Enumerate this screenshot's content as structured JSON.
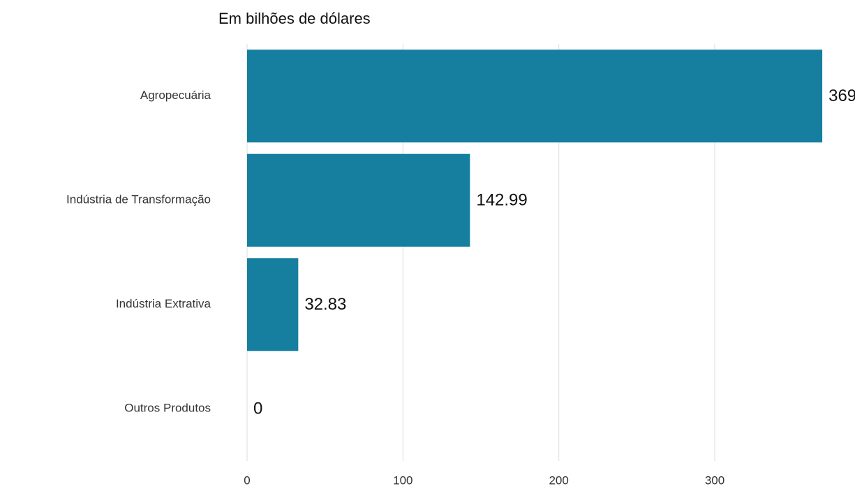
{
  "chart_data": {
    "type": "barh",
    "subtitle": "Em bilhões de dólares",
    "categories": [
      "Agropecuária",
      "Indústria de Transformação",
      "Indústria Extrativa",
      "Outros Produtos"
    ],
    "values": [
      369,
      142.99,
      32.83,
      0
    ],
    "color": "#167fa0",
    "xlim": [
      0,
      390
    ],
    "xticks": [
      0,
      100,
      200,
      300
    ],
    "grid": true
  }
}
